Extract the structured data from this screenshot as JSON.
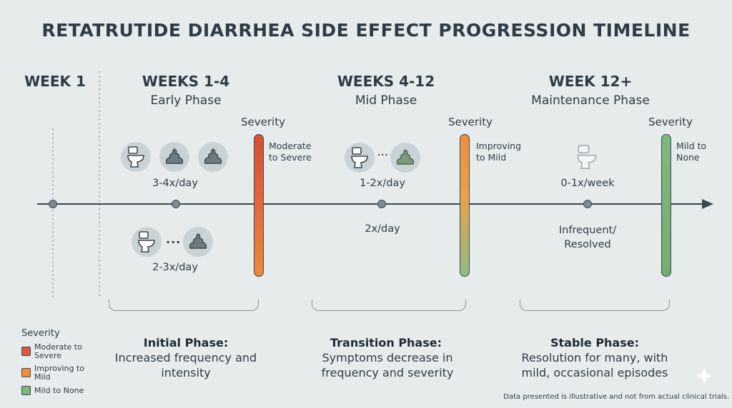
{
  "title": "RETATRUTIDE DIARRHEA SIDE EFFECT PROGRESSION TIMELINE",
  "week1": "WEEK 1",
  "phases": [
    {
      "title": "WEEKS 1-4",
      "subtitle": "Early Phase",
      "severity_heading": "Severity",
      "severity_label": "Moderate to Severe",
      "freq_top": "3-4x/day",
      "freq_bottom": "2-3x/day",
      "bottom_heading": "Initial Phase:",
      "bottom_text": "Increased frequency and intensity"
    },
    {
      "title": "WEEKS 4-12",
      "subtitle": "Mid Phase",
      "severity_heading": "Severity",
      "severity_label": "Improving to Mild",
      "freq_top": "1-2x/day",
      "freq_bottom": "2x/day",
      "bottom_heading": "Transition Phase:",
      "bottom_text": "Symptoms decrease in frequency and severity"
    },
    {
      "title": "WEEK 12+",
      "subtitle": "Maintenance Phase",
      "severity_heading": "Severity",
      "severity_label": "Mild to None",
      "freq_top": "0-1x/week",
      "freq_bottom": "Infrequent/ Resolved",
      "bottom_heading": "Stable Phase:",
      "bottom_text": "Resolution for many, with mild, occasional episodes"
    }
  ],
  "ellipsis": "...",
  "legend": {
    "title": "Severity",
    "items": [
      {
        "label": "Moderate to Severe",
        "color": "#dd5a38"
      },
      {
        "label": "Improving to Mild",
        "color": "#ec8e3a"
      },
      {
        "label": "Mild to None",
        "color": "#7db87e"
      }
    ]
  },
  "footnote": "Data presented is illustrative and not from actual clinical trials.",
  "colors": {
    "severe": "#dd5a38",
    "improving": "#ec8e3a",
    "mild": "#7db87e",
    "axis": "#3b4950"
  },
  "icons": {
    "toilet": "toilet-icon",
    "stool": "stool-icon",
    "sparkle": "sparkle-icon"
  }
}
